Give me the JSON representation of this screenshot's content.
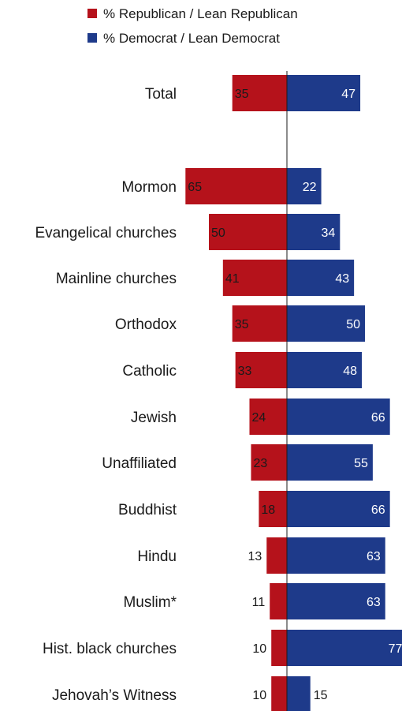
{
  "chart_data": {
    "type": "bar",
    "orientation": "horizontal-diverging",
    "legend": {
      "position": "top",
      "entries": [
        {
          "label": "% Republican / Lean Republican",
          "color": "#b5121b"
        },
        {
          "label": "% Democrat / Lean Democrat",
          "color": "#1e3a8a"
        }
      ]
    },
    "series": [
      {
        "name": "% Republican / Lean Republican",
        "color": "#b5121b",
        "values": [
          35,
          65,
          50,
          41,
          35,
          33,
          24,
          23,
          18,
          13,
          11,
          10,
          10
        ]
      },
      {
        "name": "% Democrat / Lean Democrat",
        "color": "#1e3a8a",
        "values": [
          47,
          22,
          34,
          43,
          50,
          48,
          66,
          55,
          66,
          63,
          63,
          77,
          15
        ]
      }
    ],
    "categories": [
      "Total",
      "Mormon",
      "Evangelical churches",
      "Mainline churches",
      "Orthodox",
      "Catholic",
      "Jewish",
      "Unaffiliated",
      "Buddhist",
      "Hindu",
      "Muslim*",
      "Hist. black churches",
      "Jehovah’s Witness"
    ],
    "grid": false
  }
}
